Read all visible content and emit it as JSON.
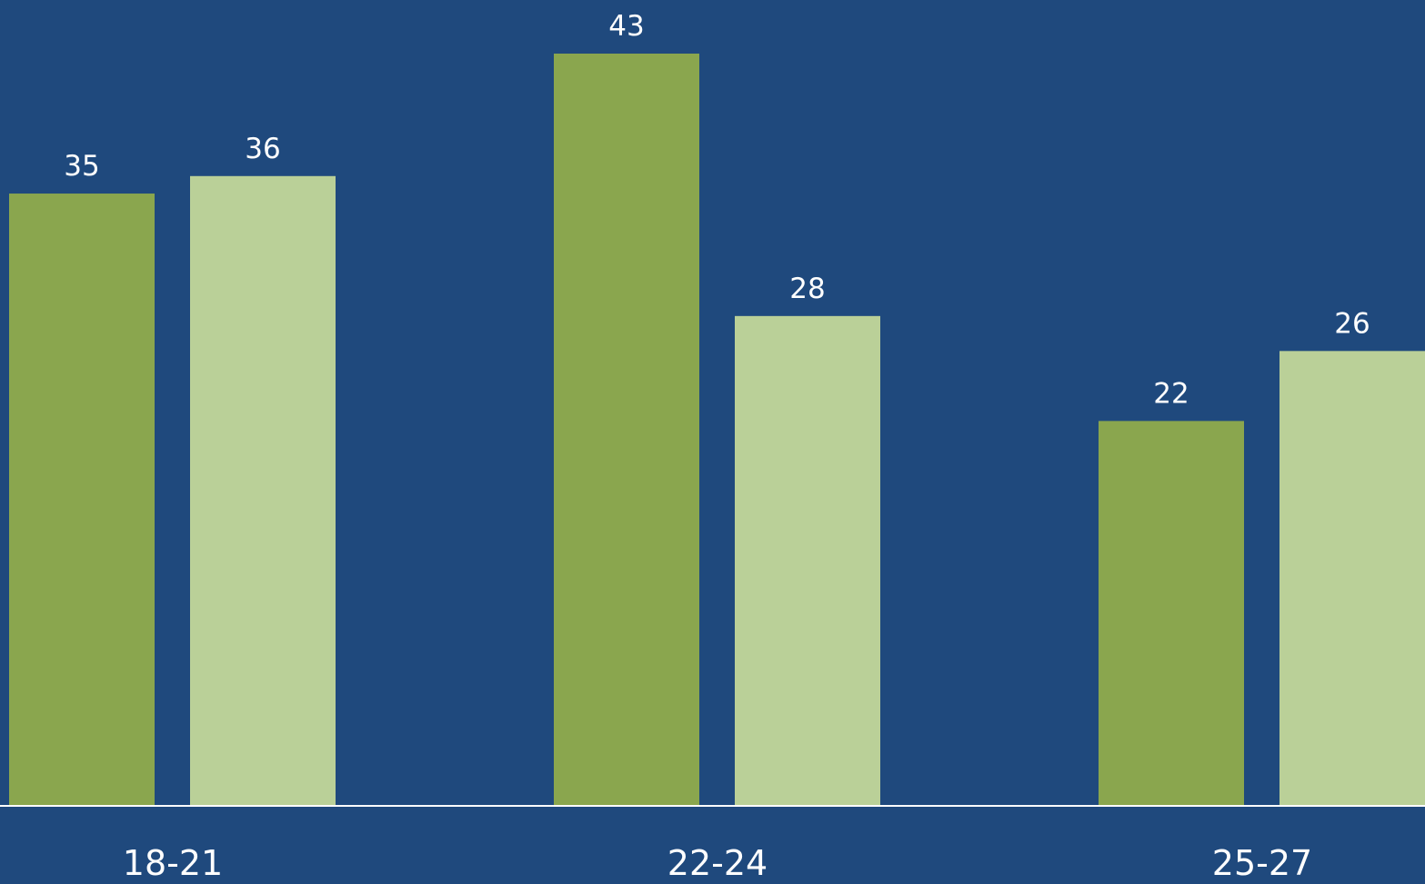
{
  "chart_data": {
    "type": "bar",
    "categories": [
      "18-21",
      "22-24",
      "25-27"
    ],
    "series": [
      {
        "values": [
          35,
          43,
          22
        ],
        "color": "#8aa64e"
      },
      {
        "values": [
          36,
          28,
          26
        ],
        "color": "#bad098"
      }
    ],
    "ylim": [
      0,
      46
    ],
    "grid": false,
    "legend": "none",
    "background_color": "#1f497d",
    "axis_color": "#ffffff",
    "label_color": "#ffffff"
  }
}
